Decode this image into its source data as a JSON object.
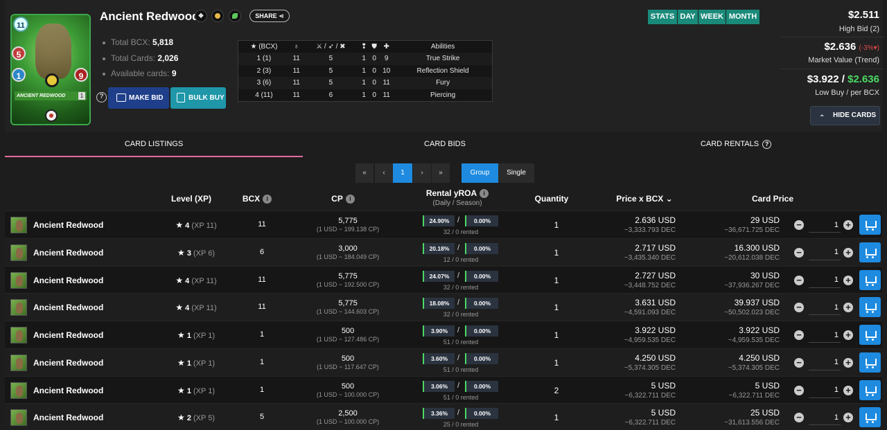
{
  "card": {
    "name": "Ancient Redwood",
    "mana": "11",
    "art_stats": {
      "melee": "5",
      "speed": "1",
      "health": "9"
    },
    "art_name": "ANCIENT REDWOOD",
    "art_level": "1",
    "share_label": "SHARE",
    "icons": [
      "splinter-icon",
      "gold-foil-icon",
      "earth-element-icon"
    ]
  },
  "stats": [
    {
      "label": "Total BCX:",
      "value": "5,818"
    },
    {
      "label": "Total Cards:",
      "value": "2,026"
    },
    {
      "label": "Available cards:",
      "value": "9"
    }
  ],
  "buttons": {
    "make_bid": "MAKE BID",
    "bulk_buy": "BULK BUY",
    "hide_cards": "HIDE CARDS"
  },
  "abilities": {
    "headers": {
      "bcx": "(BCX)",
      "mana": "",
      "attack": "/ /",
      "speed": "",
      "armor": "",
      "health": "",
      "abilities": "Abilities"
    },
    "rows": [
      {
        "level": "1 (1)",
        "mana": "11",
        "attack": "5",
        "speed": "1",
        "armor": "0",
        "health": "9",
        "ability": "True Strike"
      },
      {
        "level": "2 (3)",
        "mana": "11",
        "attack": "5",
        "speed": "1",
        "armor": "0",
        "health": "10",
        "ability": "Reflection Shield"
      },
      {
        "level": "3 (6)",
        "mana": "11",
        "attack": "5",
        "speed": "1",
        "armor": "0",
        "health": "11",
        "ability": "Fury"
      },
      {
        "level": "4 (11)",
        "mana": "11",
        "attack": "6",
        "speed": "1",
        "armor": "0",
        "health": "11",
        "ability": "Piercing"
      }
    ]
  },
  "period": {
    "stats": "STATS",
    "day": "DAY",
    "week": "WEEK",
    "month": "MONTH"
  },
  "market": {
    "high_bid_value": "$2.511",
    "high_bid_label": "High Bid (2)",
    "market_value": "$2.636",
    "trend": "(-3%",
    "trend_close": ")",
    "market_label": "Market Value (Trend)",
    "low_buy": "$3.922",
    "low_sep": "/",
    "per_bcx": "$2.636",
    "low_label": "Low Buy / per BCX"
  },
  "tabs": {
    "listings": "CARD LISTINGS",
    "bids": "CARD BIDS",
    "rentals": "CARD RENTALS"
  },
  "pagination": {
    "first": "«",
    "prev": "‹",
    "current": "1",
    "next": "›",
    "last": "»",
    "group": "Group",
    "single": "Single"
  },
  "columns": {
    "level": "Level (XP)",
    "bcx": "BCX",
    "cp": "CP",
    "roa": "Rental yROA",
    "roa_sub": "(Daily / Season)",
    "qty": "Quantity",
    "price_bcx": "Price x BCX",
    "card_price": "Card Price"
  },
  "listings": [
    {
      "name": "Ancient Redwood",
      "level": "4",
      "xp": "(XP 11)",
      "bcx": "11",
      "cp": "5,775",
      "cp_rate": "(1 USD ~ 199.138 CP)",
      "roa_daily": "24.90%",
      "roa_season": "0.00%",
      "rented": "32 / 0 rented",
      "qty": "1",
      "price_bcx": "2.636 USD",
      "price_bcx_dec": "~3,333.793 DEC",
      "card_price": "29 USD",
      "card_price_dec": "~36,671.725 DEC",
      "buy_qty": "1"
    },
    {
      "name": "Ancient Redwood",
      "level": "3",
      "xp": "(XP 6)",
      "bcx": "6",
      "cp": "3,000",
      "cp_rate": "(1 USD ~ 184.049 CP)",
      "roa_daily": "20.18%",
      "roa_season": "0.00%",
      "rented": "12 / 0 rented",
      "qty": "1",
      "price_bcx": "2.717 USD",
      "price_bcx_dec": "~3,435.340 DEC",
      "card_price": "16.300 USD",
      "card_price_dec": "~20,612.038 DEC",
      "buy_qty": "1"
    },
    {
      "name": "Ancient Redwood",
      "level": "4",
      "xp": "(XP 11)",
      "bcx": "11",
      "cp": "5,775",
      "cp_rate": "(1 USD ~ 192.500 CP)",
      "roa_daily": "24.07%",
      "roa_season": "0.00%",
      "rented": "32 / 0 rented",
      "qty": "1",
      "price_bcx": "2.727 USD",
      "price_bcx_dec": "~3,448.752 DEC",
      "card_price": "30 USD",
      "card_price_dec": "~37,936.267 DEC",
      "buy_qty": "1"
    },
    {
      "name": "Ancient Redwood",
      "level": "4",
      "xp": "(XP 11)",
      "bcx": "11",
      "cp": "5,775",
      "cp_rate": "(1 USD ~ 144.603 CP)",
      "roa_daily": "18.08%",
      "roa_season": "0.00%",
      "rented": "32 / 0 rented",
      "qty": "1",
      "price_bcx": "3.631 USD",
      "price_bcx_dec": "~4,591.093 DEC",
      "card_price": "39.937 USD",
      "card_price_dec": "~50,502.023 DEC",
      "buy_qty": "1"
    },
    {
      "name": "Ancient Redwood",
      "level": "1",
      "xp": "(XP 1)",
      "bcx": "1",
      "cp": "500",
      "cp_rate": "(1 USD ~ 127.486 CP)",
      "roa_daily": "3.90%",
      "roa_season": "0.00%",
      "rented": "51 / 0 rented",
      "qty": "1",
      "price_bcx": "3.922 USD",
      "price_bcx_dec": "~4,959.535 DEC",
      "card_price": "3.922 USD",
      "card_price_dec": "~4,959.535 DEC",
      "buy_qty": "1"
    },
    {
      "name": "Ancient Redwood",
      "level": "1",
      "xp": "(XP 1)",
      "bcx": "1",
      "cp": "500",
      "cp_rate": "(1 USD ~ 117.647 CP)",
      "roa_daily": "3.60%",
      "roa_season": "0.00%",
      "rented": "51 / 0 rented",
      "qty": "1",
      "price_bcx": "4.250 USD",
      "price_bcx_dec": "~5,374.305 DEC",
      "card_price": "4.250 USD",
      "card_price_dec": "~5,374.305 DEC",
      "buy_qty": "1"
    },
    {
      "name": "Ancient Redwood",
      "level": "1",
      "xp": "(XP 1)",
      "bcx": "1",
      "cp": "500",
      "cp_rate": "(1 USD ~ 100.000 CP)",
      "roa_daily": "3.06%",
      "roa_season": "0.00%",
      "rented": "51 / 0 rented",
      "qty": "2",
      "price_bcx": "5 USD",
      "price_bcx_dec": "~6,322.711 DEC",
      "card_price": "5 USD",
      "card_price_dec": "~6,322.711 DEC",
      "buy_qty": "1"
    },
    {
      "name": "Ancient Redwood",
      "level": "2",
      "xp": "(XP 5)",
      "bcx": "5",
      "cp": "2,500",
      "cp_rate": "(1 USD ~ 100.000 CP)",
      "roa_daily": "3.36%",
      "roa_season": "0.00%",
      "rented": "25 / 0 rented",
      "qty": "1",
      "price_bcx": "5 USD",
      "price_bcx_dec": "~6,322.711 DEC",
      "card_price": "25 USD",
      "card_price_dec": "~31,613.556 DEC",
      "buy_qty": "1"
    }
  ]
}
